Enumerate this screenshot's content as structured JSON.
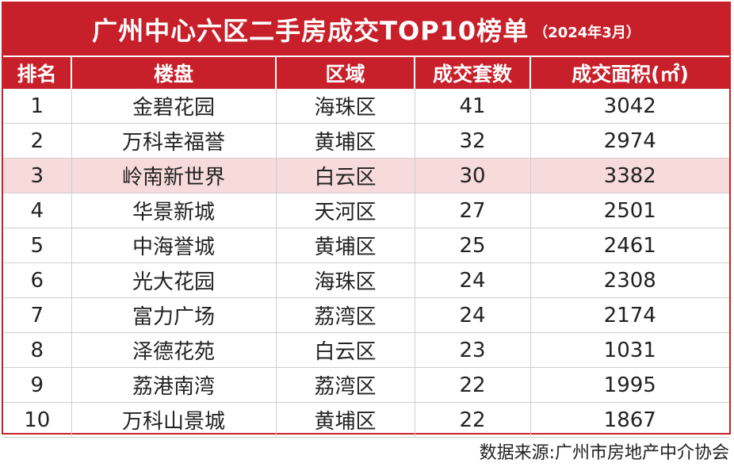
{
  "title": {
    "main": "广州中心六区二手房成交TOP10榜单",
    "sub": "（2024年3月）"
  },
  "table": {
    "headers": [
      "排名",
      "楼盘",
      "区域",
      "成交套数",
      "成交面积(㎡)"
    ],
    "highlight_row": 3,
    "rows": [
      [
        "1",
        "金碧花园",
        "海珠区",
        "41",
        "3042"
      ],
      [
        "2",
        "万科幸福誉",
        "黄埔区",
        "32",
        "2974"
      ],
      [
        "3",
        "岭南新世界",
        "白云区",
        "30",
        "3382"
      ],
      [
        "4",
        "华景新城",
        "天河区",
        "27",
        "2501"
      ],
      [
        "5",
        "中海誉城",
        "黄埔区",
        "25",
        "2461"
      ],
      [
        "6",
        "光大花园",
        "海珠区",
        "24",
        "2308"
      ],
      [
        "7",
        "富力广场",
        "荔湾区",
        "24",
        "2174"
      ],
      [
        "8",
        "泽德花苑",
        "白云区",
        "23",
        "1031"
      ],
      [
        "9",
        "荔港南湾",
        "荔湾区",
        "22",
        "1995"
      ],
      [
        "10",
        "万科山景城",
        "黄埔区",
        "22",
        "1867"
      ]
    ]
  },
  "source": "数据来源:广州市房地产中介协会",
  "colors": {
    "header_red": "#c8202a",
    "highlight_pink": "#f7dada"
  }
}
